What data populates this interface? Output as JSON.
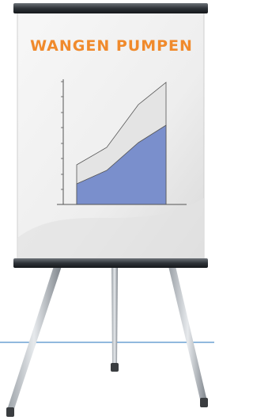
{
  "title": "WANGEN PUMPEN"
}
